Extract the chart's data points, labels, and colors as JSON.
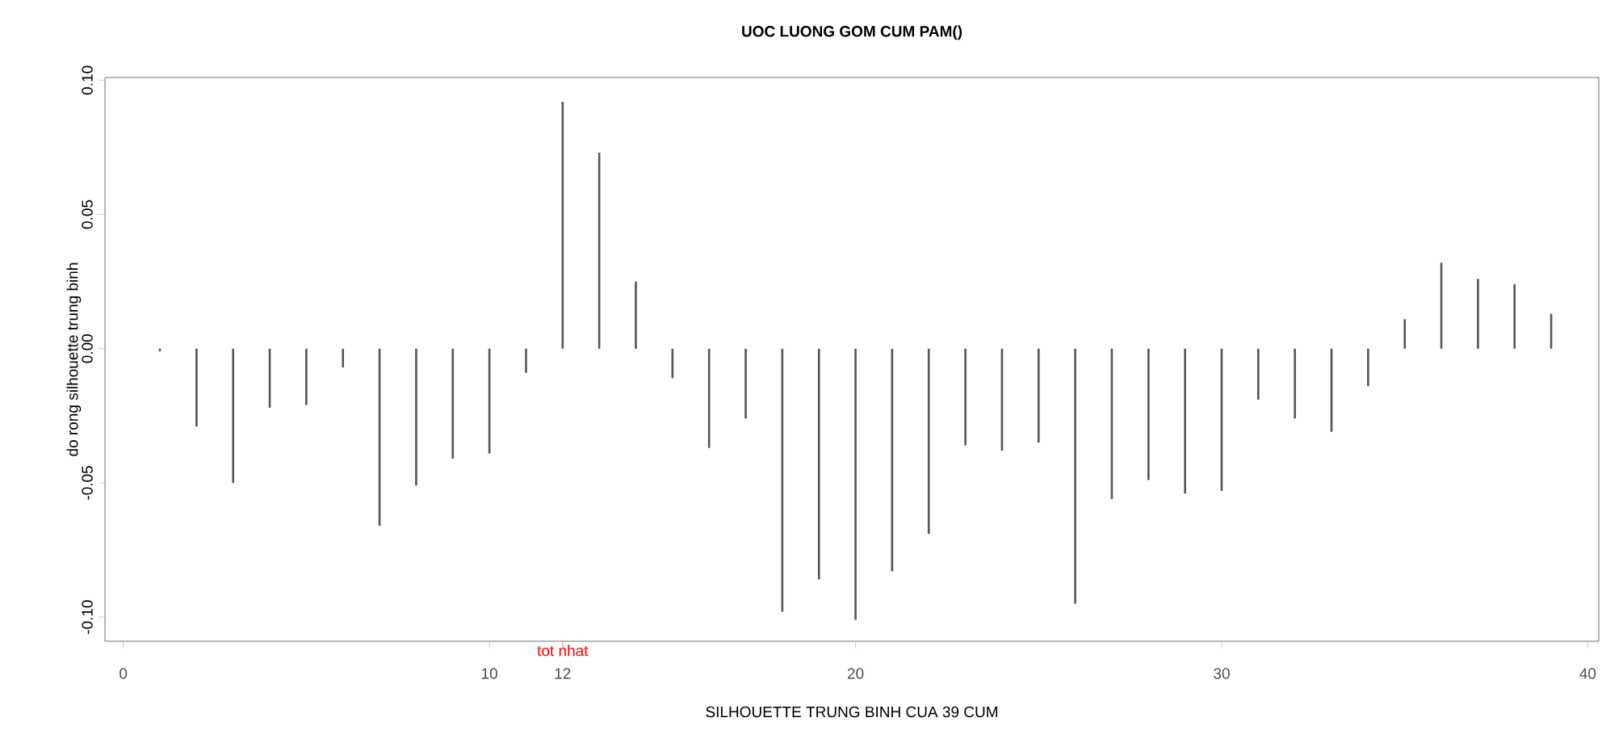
{
  "chart_data": {
    "type": "bar",
    "title": "UOC LUONG GOM CUM PAM()",
    "xlabel": "SILHOUETTE TRUNG BINH CUA 39 CUM",
    "ylabel": "do rong silhouette trung binh",
    "x": [
      1,
      2,
      3,
      4,
      5,
      6,
      7,
      8,
      9,
      10,
      11,
      12,
      13,
      14,
      15,
      16,
      17,
      18,
      19,
      20,
      21,
      22,
      23,
      24,
      25,
      26,
      27,
      28,
      29,
      30,
      31,
      32,
      33,
      34,
      35,
      36,
      37,
      38,
      39
    ],
    "values": [
      -0.001,
      -0.029,
      -0.05,
      -0.022,
      -0.021,
      -0.007,
      -0.066,
      -0.051,
      -0.041,
      -0.039,
      -0.009,
      0.092,
      0.073,
      0.025,
      -0.011,
      -0.037,
      -0.026,
      -0.098,
      -0.086,
      -0.101,
      -0.083,
      -0.069,
      -0.036,
      -0.038,
      -0.035,
      -0.095,
      -0.056,
      -0.049,
      -0.054,
      -0.053,
      -0.019,
      -0.026,
      -0.031,
      -0.014,
      0.011,
      0.032,
      0.026,
      0.024,
      0.013
    ],
    "color": "#555555",
    "xlim": [
      -0.5,
      40.3
    ],
    "ylim": [
      -0.109,
      0.101
    ],
    "xticks": [
      0,
      10,
      12,
      20,
      30,
      40
    ],
    "yticks": [
      {
        "value": -0.1,
        "label": "-0.10"
      },
      {
        "value": -0.05,
        "label": "-0.05"
      },
      {
        "value": 0,
        "label": "0.00"
      },
      {
        "value": 0.05,
        "label": "0.05"
      },
      {
        "value": 0.1,
        "label": "0.10"
      }
    ],
    "annotations": [
      "tot nhat"
    ]
  }
}
